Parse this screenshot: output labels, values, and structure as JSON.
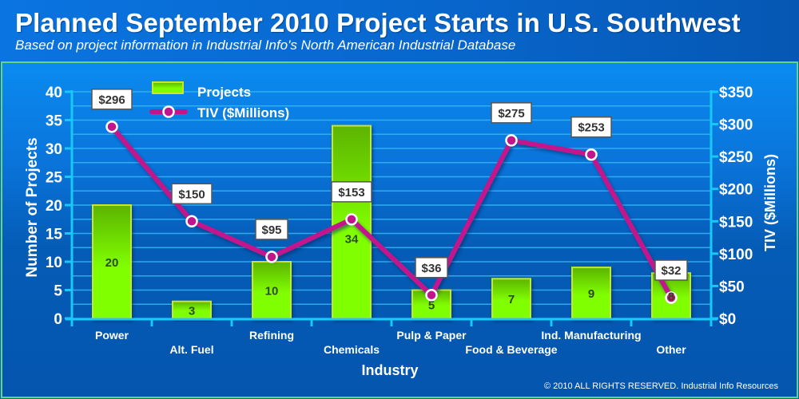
{
  "header": {
    "title": "Planned September 2010 Project Starts in U.S. Southwest",
    "subtitle": "Based on project information in Industrial Info's North American Industrial Database"
  },
  "footer": {
    "copyright": "© 2010 ALL RIGHTS RESERVED. Industrial Info Resources"
  },
  "colors": {
    "bar_fill_top": "#5fb800",
    "bar_fill_bottom": "#80ff00",
    "bar_border": "#c8e62a",
    "line": "#c4148c",
    "marker_fill": "#c4148c",
    "marker_stroke": "#ffffff",
    "axis": "#18c8f8",
    "gridline": "#35b8f5",
    "label_box_bg": "#ffffff",
    "label_box_border": "#555555",
    "label_text": "#333333",
    "bar_label_text": "#2d4a10"
  },
  "chart_data": {
    "type": "bar+line",
    "title": "Planned September 2010 Project Starts in U.S. Southwest",
    "subtitle": "Based on project information in Industrial Info's North American Industrial Database",
    "xlabel": "Industry",
    "ylabel": "Number of Projects",
    "y2label": "TIV ($Millions)",
    "categories": [
      "Power",
      "Alt. Fuel",
      "Refining",
      "Chemicals",
      "Pulp & Paper",
      "Food & Beverage",
      "Ind. Manufacturing",
      "Other"
    ],
    "series": [
      {
        "name": "Projects",
        "type": "bar",
        "axis": "left",
        "values": [
          20,
          3,
          10,
          34,
          5,
          7,
          9,
          8
        ],
        "labels": [
          "20",
          "3",
          "10",
          "34",
          "5",
          "7",
          "9",
          "8"
        ]
      },
      {
        "name": "TIV ($Millions)",
        "type": "line",
        "axis": "right",
        "values": [
          296,
          150,
          95,
          153,
          36,
          275,
          253,
          32
        ],
        "labels": [
          "$296",
          "$150",
          "$95",
          "$153",
          "$36",
          "$275",
          "$253",
          "$32"
        ]
      }
    ],
    "ylim": [
      0,
      40
    ],
    "yticks": [
      0,
      5,
      10,
      15,
      20,
      25,
      30,
      35,
      40
    ],
    "ytick_labels": [
      "0",
      "5",
      "10",
      "15",
      "20",
      "25",
      "30",
      "35",
      "40"
    ],
    "y2lim": [
      0,
      350
    ],
    "y2ticks": [
      0,
      50,
      100,
      150,
      200,
      250,
      300,
      350
    ],
    "y2tick_labels": [
      "$0",
      "$50",
      "$100",
      "$150",
      "$200",
      "$250",
      "$300",
      "$350"
    ],
    "grid": true,
    "legend": {
      "position": "top-left",
      "entries": [
        "Projects",
        "TIV ($Millions)"
      ]
    }
  }
}
